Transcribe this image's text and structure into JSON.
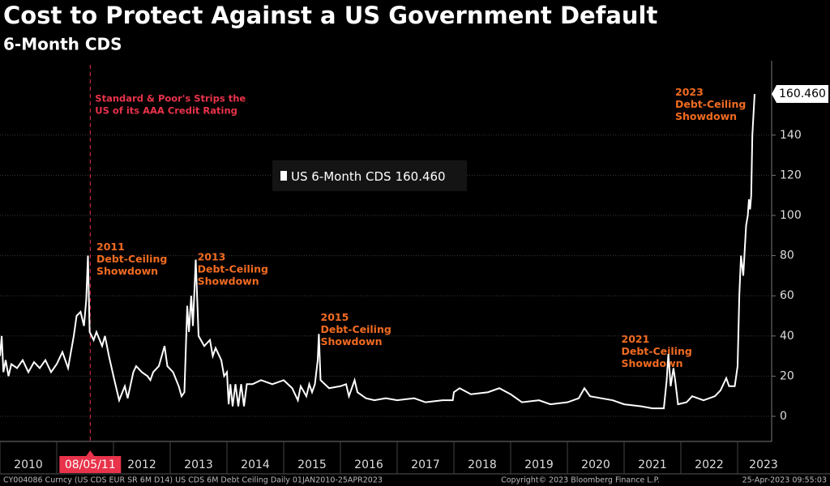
{
  "chart_data": {
    "type": "line",
    "title": "Cost to Protect Against a US Government Default",
    "subtitle": "6-Month CDS",
    "series": [
      {
        "name": "US 6-Month CDS",
        "color": "#ffffff",
        "last_label": "160.460",
        "x": [
          2010.0,
          2010.03,
          2010.06,
          2010.1,
          2010.15,
          2010.2,
          2010.3,
          2010.4,
          2010.5,
          2010.6,
          2010.7,
          2010.8,
          2010.9,
          2011.0,
          2011.1,
          2011.2,
          2011.3,
          2011.35,
          2011.42,
          2011.48,
          2011.52,
          2011.55,
          2011.58,
          2011.65,
          2011.7,
          2011.8,
          2011.85,
          2011.92,
          2012.0,
          2012.1,
          2012.2,
          2012.25,
          2012.35,
          2012.4,
          2012.5,
          2012.6,
          2012.65,
          2012.7,
          2012.8,
          2012.9,
          2012.95,
          2013.05,
          2013.15,
          2013.2,
          2013.25,
          2013.3,
          2013.33,
          2013.37,
          2013.4,
          2013.45,
          2013.5,
          2013.6,
          2013.7,
          2013.75,
          2013.8,
          2013.9,
          2013.95,
          2014.0,
          2014.03,
          2014.06,
          2014.1,
          2014.15,
          2014.2,
          2014.25,
          2014.3,
          2014.35,
          2014.45,
          2014.6,
          2014.8,
          2015.0,
          2015.15,
          2015.25,
          2015.3,
          2015.4,
          2015.45,
          2015.5,
          2015.55,
          2015.6,
          2015.62,
          2015.65,
          2015.8,
          2016.0,
          2016.1,
          2016.15,
          2016.25,
          2016.3,
          2016.45,
          2016.6,
          2016.8,
          2017.0,
          2017.3,
          2017.5,
          2017.8,
          2017.98,
          2018.0,
          2018.1,
          2018.3,
          2018.6,
          2018.8,
          2019.0,
          2019.2,
          2019.5,
          2019.7,
          2020.0,
          2020.2,
          2020.3,
          2020.4,
          2020.6,
          2020.8,
          2021.0,
          2021.3,
          2021.5,
          2021.7,
          2021.75,
          2021.78,
          2021.82,
          2021.87,
          2021.9,
          2021.95,
          2022.1,
          2022.2,
          2022.4,
          2022.6,
          2022.7,
          2022.8,
          2022.85,
          2022.95,
          2023.0,
          2023.03,
          2023.06,
          2023.1,
          2023.15,
          2023.18,
          2023.2,
          2023.22,
          2023.24,
          2023.26,
          2023.3
        ],
        "values": [
          30,
          40,
          22,
          28,
          20,
          26,
          24,
          28,
          22,
          27,
          24,
          28,
          22,
          26,
          32,
          24,
          40,
          50,
          52,
          45,
          58,
          80,
          42,
          38,
          42,
          35,
          40,
          30,
          20,
          8,
          15,
          9,
          22,
          25,
          22,
          20,
          18,
          22,
          25,
          35,
          25,
          22,
          15,
          10,
          12,
          55,
          42,
          60,
          45,
          78,
          40,
          35,
          38,
          30,
          34,
          28,
          20,
          22,
          6,
          16,
          5,
          16,
          5,
          16,
          5,
          16,
          16,
          18,
          16,
          18,
          14,
          8,
          15,
          10,
          16,
          12,
          16,
          28,
          41,
          18,
          14,
          15,
          16,
          10,
          18,
          12,
          9,
          8,
          9,
          8,
          9,
          7,
          8,
          8,
          12,
          14,
          11,
          12,
          14,
          11,
          7,
          8,
          6,
          7,
          9,
          14,
          10,
          9,
          8,
          6,
          5,
          4,
          4,
          18,
          31,
          15,
          24,
          18,
          6,
          7,
          10,
          8,
          10,
          13,
          19,
          15,
          15,
          25,
          60,
          80,
          70,
          95,
          100,
          108,
          103,
          110,
          140,
          160.46
        ]
      }
    ],
    "xlim": [
      2010,
      2023.6
    ],
    "xticks": [
      2010,
      2011,
      2012,
      2013,
      2014,
      2015,
      2016,
      2017,
      2018,
      2019,
      2020,
      2021,
      2022,
      2023
    ],
    "ylim": [
      -12.5,
      177
    ],
    "yticks": [
      0,
      20,
      40,
      60,
      80,
      100,
      120,
      140
    ],
    "event": {
      "x": 2011.59,
      "label": "08/05/11",
      "lines": [
        "Standard & Poor's Strips the",
        "US of its AAA Credit Rating"
      ],
      "color": "#e8334a"
    },
    "annotations": [
      {
        "x": 2011.7,
        "y": 84,
        "lines": [
          "2011",
          "Debt-Ceiling",
          "Showdown"
        ]
      },
      {
        "x": 2013.48,
        "y": 79,
        "lines": [
          "2013",
          "Debt-Ceiling",
          "Showdown"
        ]
      },
      {
        "x": 2015.65,
        "y": 49,
        "lines": [
          "2015",
          "Debt-Ceiling",
          "Showdown"
        ]
      },
      {
        "x": 2020.95,
        "y": 38,
        "lines": [
          "2021",
          "Debt-Ceiling",
          "Showdown"
        ]
      },
      {
        "x": 2021.9,
        "y": 161,
        "lines": [
          "2023",
          "Debt-Ceiling",
          "Showdown"
        ]
      }
    ],
    "annotation_color": "#f26b21",
    "footer": {
      "left": "CY004086 Curncy (US CDS EUR SR 6M D14) US CDS 6M Debt Ceiling  Daily 01JAN2010-25APR2023",
      "center": "Copyright© 2023 Bloomberg Finance L.P.",
      "right": "25-Apr-2023 09:55:03"
    }
  }
}
